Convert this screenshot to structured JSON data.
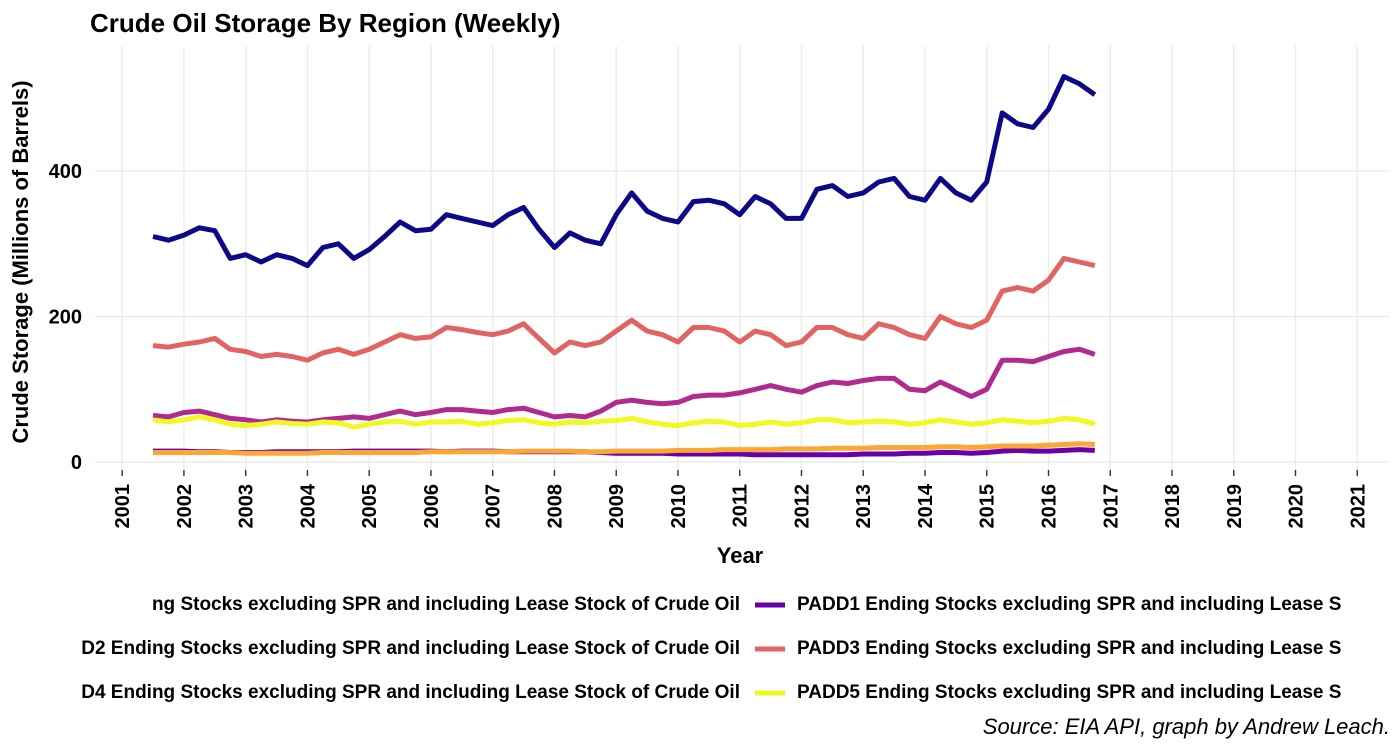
{
  "chart_data": {
    "type": "line",
    "title": "Crude Oil Storage By Region (Weekly)",
    "x_label": "Year",
    "y_label": "Crude Storage (Millions of Barrels)",
    "caption": "Source: EIA API, graph by Andrew Leach.",
    "grid": true,
    "xlim": [
      2000.56,
      2021.53
    ],
    "ylim": [
      -11,
      572
    ],
    "xticks": [
      2001,
      2002,
      2003,
      2004,
      2005,
      2006,
      2007,
      2008,
      2009,
      2010,
      2011,
      2012,
      2013,
      2014,
      2015,
      2016,
      2017,
      2018,
      2019,
      2020,
      2021
    ],
    "yticks": [
      0,
      200,
      400
    ],
    "x": [
      2001.5,
      2001.75,
      2002,
      2002.25,
      2002.5,
      2002.75,
      2003,
      2003.25,
      2003.5,
      2003.75,
      2004,
      2004.25,
      2004.5,
      2004.75,
      2005,
      2005.25,
      2005.5,
      2005.75,
      2006,
      2006.25,
      2006.5,
      2006.75,
      2007,
      2007.25,
      2007.5,
      2007.75,
      2008,
      2008.25,
      2008.5,
      2008.75,
      2009,
      2009.25,
      2009.5,
      2009.75,
      2010,
      2010.25,
      2010.5,
      2010.75,
      2011,
      2011.25,
      2011.5,
      2011.75,
      2012,
      2012.25,
      2012.5,
      2012.75,
      2013,
      2013.25,
      2013.5,
      2013.75,
      2014,
      2014.25,
      2014.5,
      2014.75,
      2015,
      2015.25,
      2015.5,
      2015.75,
      2016,
      2016.25,
      2016.5,
      2016.75
    ],
    "series": [
      {
        "name": "ng Stocks excluding SPR and including Lease Stock of Crude Oil",
        "color": "#0d0887",
        "values": [
          310,
          305,
          312,
          322,
          318,
          280,
          285,
          275,
          285,
          280,
          270,
          295,
          300,
          280,
          292,
          310,
          330,
          318,
          320,
          340,
          335,
          330,
          325,
          340,
          350,
          320,
          295,
          315,
          305,
          300,
          340,
          370,
          345,
          335,
          330,
          358,
          360,
          355,
          340,
          365,
          355,
          335,
          335,
          375,
          380,
          365,
          370,
          385,
          390,
          365,
          360,
          390,
          370,
          360,
          385,
          480,
          465,
          460,
          485,
          530,
          520,
          505
        ]
      },
      {
        "name": "PADD1 Ending Stocks excluding SPR and including Lease S",
        "color": "#6a00a8",
        "values": [
          15,
          15,
          15,
          14,
          14,
          13,
          13,
          13,
          14,
          14,
          14,
          14,
          14,
          15,
          15,
          15,
          15,
          15,
          15,
          14,
          15,
          15,
          15,
          14,
          14,
          14,
          14,
          14,
          14,
          13,
          12,
          12,
          12,
          12,
          11,
          11,
          11,
          11,
          11,
          10,
          10,
          10,
          10,
          10,
          10,
          10,
          11,
          11,
          11,
          12,
          12,
          13,
          13,
          12,
          13,
          15,
          16,
          15,
          15,
          16,
          17,
          16
        ]
      },
      {
        "name": "D2 Ending Stocks excluding SPR and including Lease Stock of Crude Oil",
        "color": "#b12a90",
        "values": [
          64,
          62,
          68,
          70,
          65,
          60,
          58,
          55,
          58,
          56,
          55,
          58,
          60,
          62,
          60,
          65,
          70,
          65,
          68,
          72,
          72,
          70,
          68,
          72,
          74,
          68,
          62,
          64,
          62,
          70,
          82,
          85,
          82,
          80,
          82,
          90,
          92,
          92,
          95,
          100,
          105,
          100,
          96,
          105,
          110,
          108,
          112,
          115,
          115,
          100,
          98,
          110,
          100,
          90,
          100,
          140,
          140,
          138,
          145,
          152,
          155,
          148
        ]
      },
      {
        "name": "PADD3 Ending Stocks excluding SPR and including Lease S",
        "color": "#e16462",
        "values": [
          160,
          158,
          162,
          165,
          170,
          155,
          152,
          145,
          148,
          145,
          140,
          150,
          155,
          148,
          155,
          165,
          175,
          170,
          172,
          185,
          182,
          178,
          175,
          180,
          190,
          170,
          150,
          165,
          160,
          165,
          180,
          195,
          180,
          175,
          165,
          185,
          185,
          180,
          165,
          180,
          175,
          160,
          165,
          185,
          185,
          175,
          170,
          190,
          185,
          175,
          170,
          200,
          190,
          185,
          195,
          235,
          240,
          235,
          250,
          280,
          275,
          270
        ]
      },
      {
        "name": "D4 Ending Stocks excluding SPR and including Lease Stock of Crude Oil",
        "color": "#fca636",
        "values": [
          13,
          13,
          13,
          13,
          13,
          13,
          12,
          12,
          12,
          12,
          12,
          13,
          13,
          13,
          13,
          13,
          13,
          13,
          14,
          14,
          14,
          14,
          14,
          14,
          15,
          15,
          15,
          15,
          14,
          14,
          15,
          15,
          15,
          15,
          16,
          16,
          16,
          17,
          17,
          17,
          17,
          18,
          18,
          18,
          19,
          19,
          19,
          20,
          20,
          20,
          20,
          21,
          21,
          20,
          21,
          22,
          22,
          22,
          23,
          24,
          25,
          24
        ]
      },
      {
        "name": "PADD5 Ending Stocks excluding SPR and including Lease S",
        "color": "#f0f921",
        "values": [
          58,
          55,
          58,
          62,
          58,
          52,
          50,
          52,
          55,
          53,
          52,
          55,
          54,
          48,
          52,
          55,
          56,
          52,
          55,
          55,
          56,
          52,
          54,
          57,
          58,
          54,
          52,
          55,
          54,
          56,
          57,
          60,
          55,
          52,
          50,
          54,
          56,
          55,
          50,
          52,
          55,
          52,
          54,
          58,
          58,
          54,
          55,
          56,
          55,
          52,
          54,
          58,
          55,
          52,
          54,
          58,
          56,
          54,
          56,
          60,
          58,
          52
        ]
      }
    ]
  }
}
